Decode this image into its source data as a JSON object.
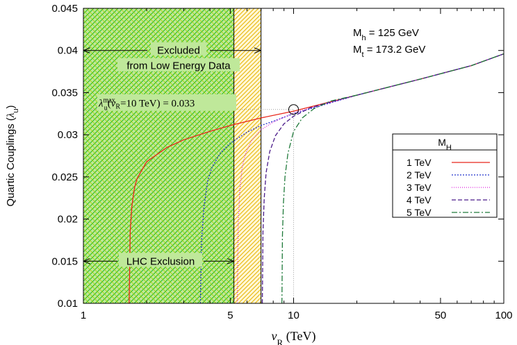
{
  "chart_data": {
    "type": "line",
    "title": "",
    "xlabel": "v_R (TeV)",
    "xlabel_main": "v",
    "xlabel_sub": "R",
    "xlabel_unit": " (TeV)",
    "ylabel": "Quartic Couplings (λ_u)",
    "ylabel_main": "Quartic Couplings (",
    "ylabel_sym": "λ",
    "ylabel_sub": "u",
    "ylabel_end": ")",
    "xscale": "log",
    "xlim": [
      1,
      100
    ],
    "ylim": [
      0.01,
      0.045
    ],
    "xticks": [
      1,
      5,
      10,
      50,
      100
    ],
    "xtick_labels": [
      "1",
      "5",
      "10",
      "50",
      "100"
    ],
    "yticks": [
      0.01,
      0.015,
      0.02,
      0.025,
      0.03,
      0.035,
      0.04,
      0.045
    ],
    "ytick_labels": [
      "0.01",
      "0.015",
      "0.02",
      "0.025",
      "0.03",
      "0.035",
      "0.04",
      "0.045"
    ],
    "grid": false,
    "legend": {
      "title": "M_H",
      "title_main": "M",
      "title_sub": "H",
      "placement": "right"
    },
    "params": {
      "mh": {
        "main": "M",
        "sub": "h",
        "rest": " = 125 GeV"
      },
      "mt": {
        "main": "M",
        "sub": "t",
        "rest": " = 173.2 GeV"
      }
    },
    "regions": [
      {
        "name": "LHC Exclusion",
        "x_from": 1,
        "x_to": 5.2,
        "color": "#22cc22",
        "fill": "#bfe89a"
      },
      {
        "name": "Excluded from Low Energy Data",
        "x_from": 5.2,
        "x_to": 7.0,
        "color": "#e8b400",
        "fill": "#fff4c8"
      }
    ],
    "annotations": {
      "excluded_line1": "Excluded",
      "excluded_line2": "from Low Energy Data",
      "excluded_arrow_y": 0.04,
      "lhc": "LHC Exclusion",
      "lhc_arrow_y": 0.015,
      "lambda_max": {
        "sym": "λ",
        "sub": "u",
        "sup": "max",
        "arg_open": "(",
        "arg_v": "v",
        "arg_sub": "R",
        "arg_rest": "=10 TeV) = 0.033",
        "x": 10,
        "y": 0.033
      }
    },
    "series": [
      {
        "name": "1 TeV",
        "color": "#e8261a",
        "dash": "",
        "endpoint": [
          1.65,
          0.01
        ],
        "x": [
          1.65,
          1.67,
          1.7,
          1.75,
          1.8,
          2,
          2.5,
          3,
          4,
          5,
          7,
          10,
          20,
          40,
          70,
          100
        ],
        "y": [
          0.01,
          0.0185,
          0.0215,
          0.0237,
          0.0248,
          0.0268,
          0.0285,
          0.0294,
          0.0304,
          0.0311,
          0.032,
          0.0328,
          0.0347,
          0.0366,
          0.0382,
          0.0396
        ]
      },
      {
        "name": "2 TeV",
        "color": "#2233cc",
        "dash": "2,2",
        "endpoint": [
          3.6,
          0.01
        ],
        "x": [
          3.6,
          3.65,
          3.75,
          3.9,
          4.1,
          4.5,
          5,
          6,
          7,
          8,
          10,
          20,
          40,
          70,
          100
        ],
        "y": [
          0.01,
          0.0175,
          0.0215,
          0.0245,
          0.0262,
          0.0279,
          0.029,
          0.0303,
          0.0311,
          0.0316,
          0.0325,
          0.0347,
          0.0366,
          0.0382,
          0.0396
        ]
      },
      {
        "name": "3 TeV",
        "color": "#dd22dd",
        "dash": "1,2",
        "endpoint": [
          5.4,
          0.01
        ],
        "x": [
          5.4,
          5.45,
          5.55,
          5.7,
          5.9,
          6.3,
          7,
          8,
          10,
          13,
          20,
          40,
          70,
          100
        ],
        "y": [
          0.01,
          0.0195,
          0.0235,
          0.0262,
          0.0277,
          0.0293,
          0.0306,
          0.0315,
          0.0326,
          0.0334,
          0.0347,
          0.0366,
          0.0382,
          0.0396
        ]
      },
      {
        "name": "4 TeV",
        "color": "#4a1a8a",
        "dash": "6,3",
        "endpoint": [
          7.1,
          0.01
        ],
        "x": [
          7.1,
          7.15,
          7.25,
          7.4,
          7.7,
          8.2,
          9,
          10,
          12,
          15,
          20,
          40,
          70,
          100
        ],
        "y": [
          0.01,
          0.0185,
          0.0225,
          0.0255,
          0.028,
          0.0299,
          0.0313,
          0.0322,
          0.0332,
          0.0339,
          0.0347,
          0.0366,
          0.0382,
          0.0396
        ]
      },
      {
        "name": "5 TeV",
        "color": "#1f7a3a",
        "dash": "8,3,2,3",
        "endpoint": [
          8.8,
          0.01
        ],
        "x": [
          8.8,
          8.85,
          8.95,
          9.1,
          9.4,
          10,
          11,
          12.5,
          15,
          20,
          40,
          70,
          100
        ],
        "y": [
          0.01,
          0.018,
          0.022,
          0.025,
          0.0278,
          0.0304,
          0.032,
          0.0331,
          0.034,
          0.0347,
          0.0366,
          0.0382,
          0.0396
        ]
      }
    ]
  }
}
